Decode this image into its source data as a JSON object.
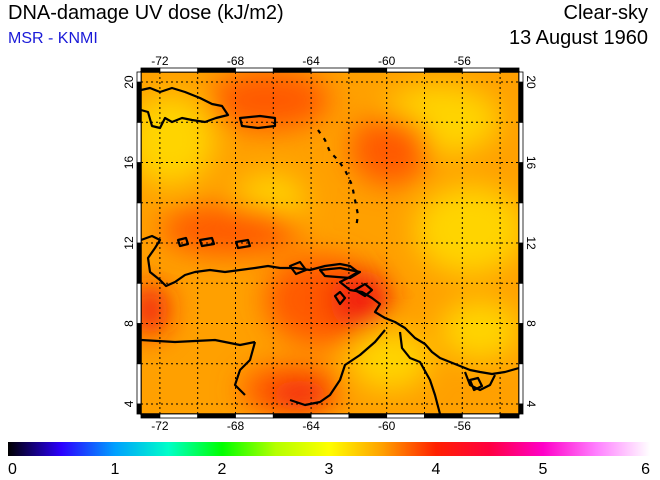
{
  "header": {
    "title": "DNA-damage UV dose (kJ/m2)",
    "source": "MSR - KNMI",
    "condition": "Clear-sky",
    "date": "13 August 1960"
  },
  "map": {
    "lon_range": [
      -73,
      -53
    ],
    "lat_range": [
      3.5,
      20.5
    ],
    "lon_ticks": [
      -72,
      -68,
      -64,
      -60,
      -56
    ],
    "lat_ticks": [
      4,
      8,
      12,
      16,
      20
    ],
    "lon_tick_labels": [
      "-72",
      "-68",
      "-64",
      "-60",
      "-56"
    ],
    "lat_tick_labels": [
      "4",
      "8",
      "12",
      "16",
      "20"
    ],
    "grid_lon": [
      -72,
      -70,
      -68,
      -66,
      -64,
      -62,
      -60,
      -58,
      -56,
      -54
    ],
    "grid_lat": [
      4,
      6,
      8,
      10,
      12,
      14,
      16,
      18,
      20
    ],
    "grid_style": "dotted",
    "field_base_color": "#ffa000",
    "colors": {
      "yellow": "#ffd400",
      "orange": "#ff9a00",
      "red_orange": "#ff5a00",
      "red": "#f21a10"
    }
  },
  "colorbar": {
    "min": 0,
    "max": 6,
    "tick_labels": [
      "0",
      "1",
      "2",
      "3",
      "4",
      "5",
      "6"
    ],
    "stops": [
      "#000000",
      "#2b00ff",
      "#00a0ff",
      "#00ffc8",
      "#00ff00",
      "#b4ff00",
      "#ffff00",
      "#ffa000",
      "#ff2000",
      "#ff0040",
      "#ff00c8",
      "#ff80ff",
      "#ffffff"
    ]
  }
}
